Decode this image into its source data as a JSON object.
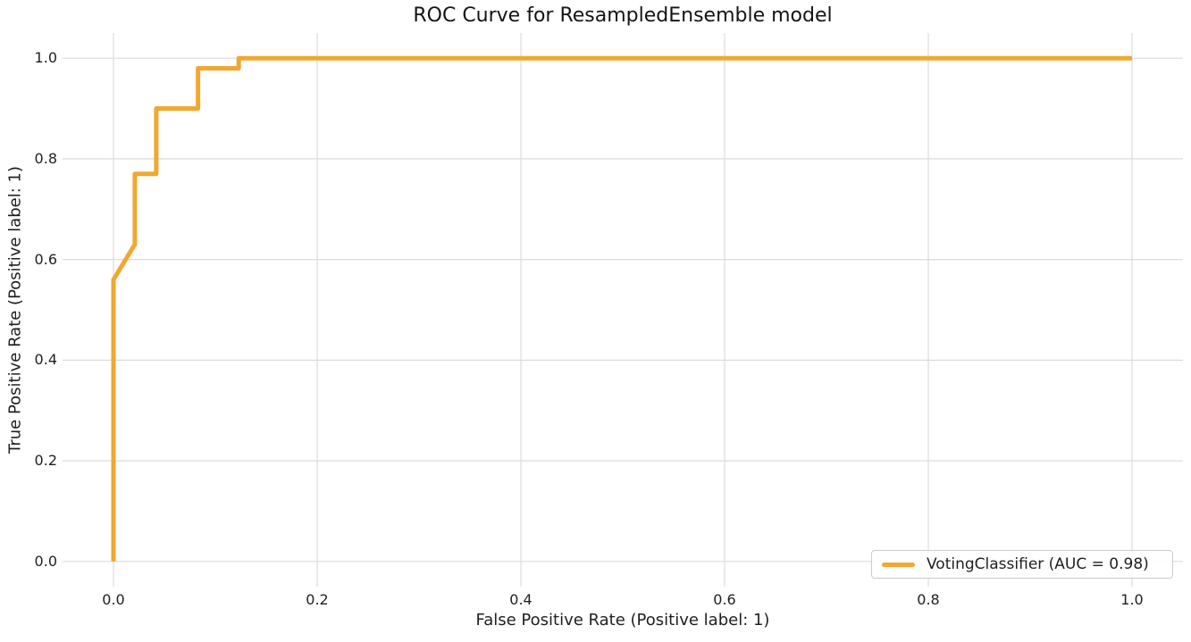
{
  "title": "ROC Curve for ResampledEnsemble model",
  "chart_data": {
    "type": "line",
    "title": "ROC Curve for ResampledEnsemble model",
    "xlabel": "False Positive Rate (Positive label: 1)",
    "ylabel": "True Positive Rate (Positive label: 1)",
    "xlim": [
      -0.05,
      1.05
    ],
    "ylim": [
      -0.05,
      1.05
    ],
    "xticks": [
      0.0,
      0.2,
      0.4,
      0.6,
      0.8,
      1.0
    ],
    "yticks": [
      0.0,
      0.2,
      0.4,
      0.6,
      0.8,
      1.0
    ],
    "xtick_labels": [
      "0.0",
      "0.2",
      "0.4",
      "0.6",
      "0.8",
      "1.0"
    ],
    "ytick_labels": [
      "0.0",
      "0.2",
      "0.4",
      "0.6",
      "0.8",
      "1.0"
    ],
    "grid": true,
    "legend_position": "lower right",
    "series": [
      {
        "name": "VotingClassifier (AUC = 0.98)",
        "auc": 0.98,
        "color": "#F0A830",
        "fpr": [
          0.0,
          0.0,
          0.021,
          0.021,
          0.042,
          0.042,
          0.083,
          0.083,
          0.123,
          0.123,
          1.0
        ],
        "tpr": [
          0.0,
          0.56,
          0.63,
          0.77,
          0.77,
          0.9,
          0.9,
          0.98,
          0.98,
          1.0,
          1.0
        ]
      }
    ]
  },
  "legend": {
    "label": "VotingClassifier (AUC = 0.98)"
  },
  "colors": {
    "curve": "#F0A830",
    "grid": "#DCDCDC",
    "text": "#1F1F1F",
    "background": "#FFFFFF",
    "legend_border": "#CCCCCC"
  }
}
